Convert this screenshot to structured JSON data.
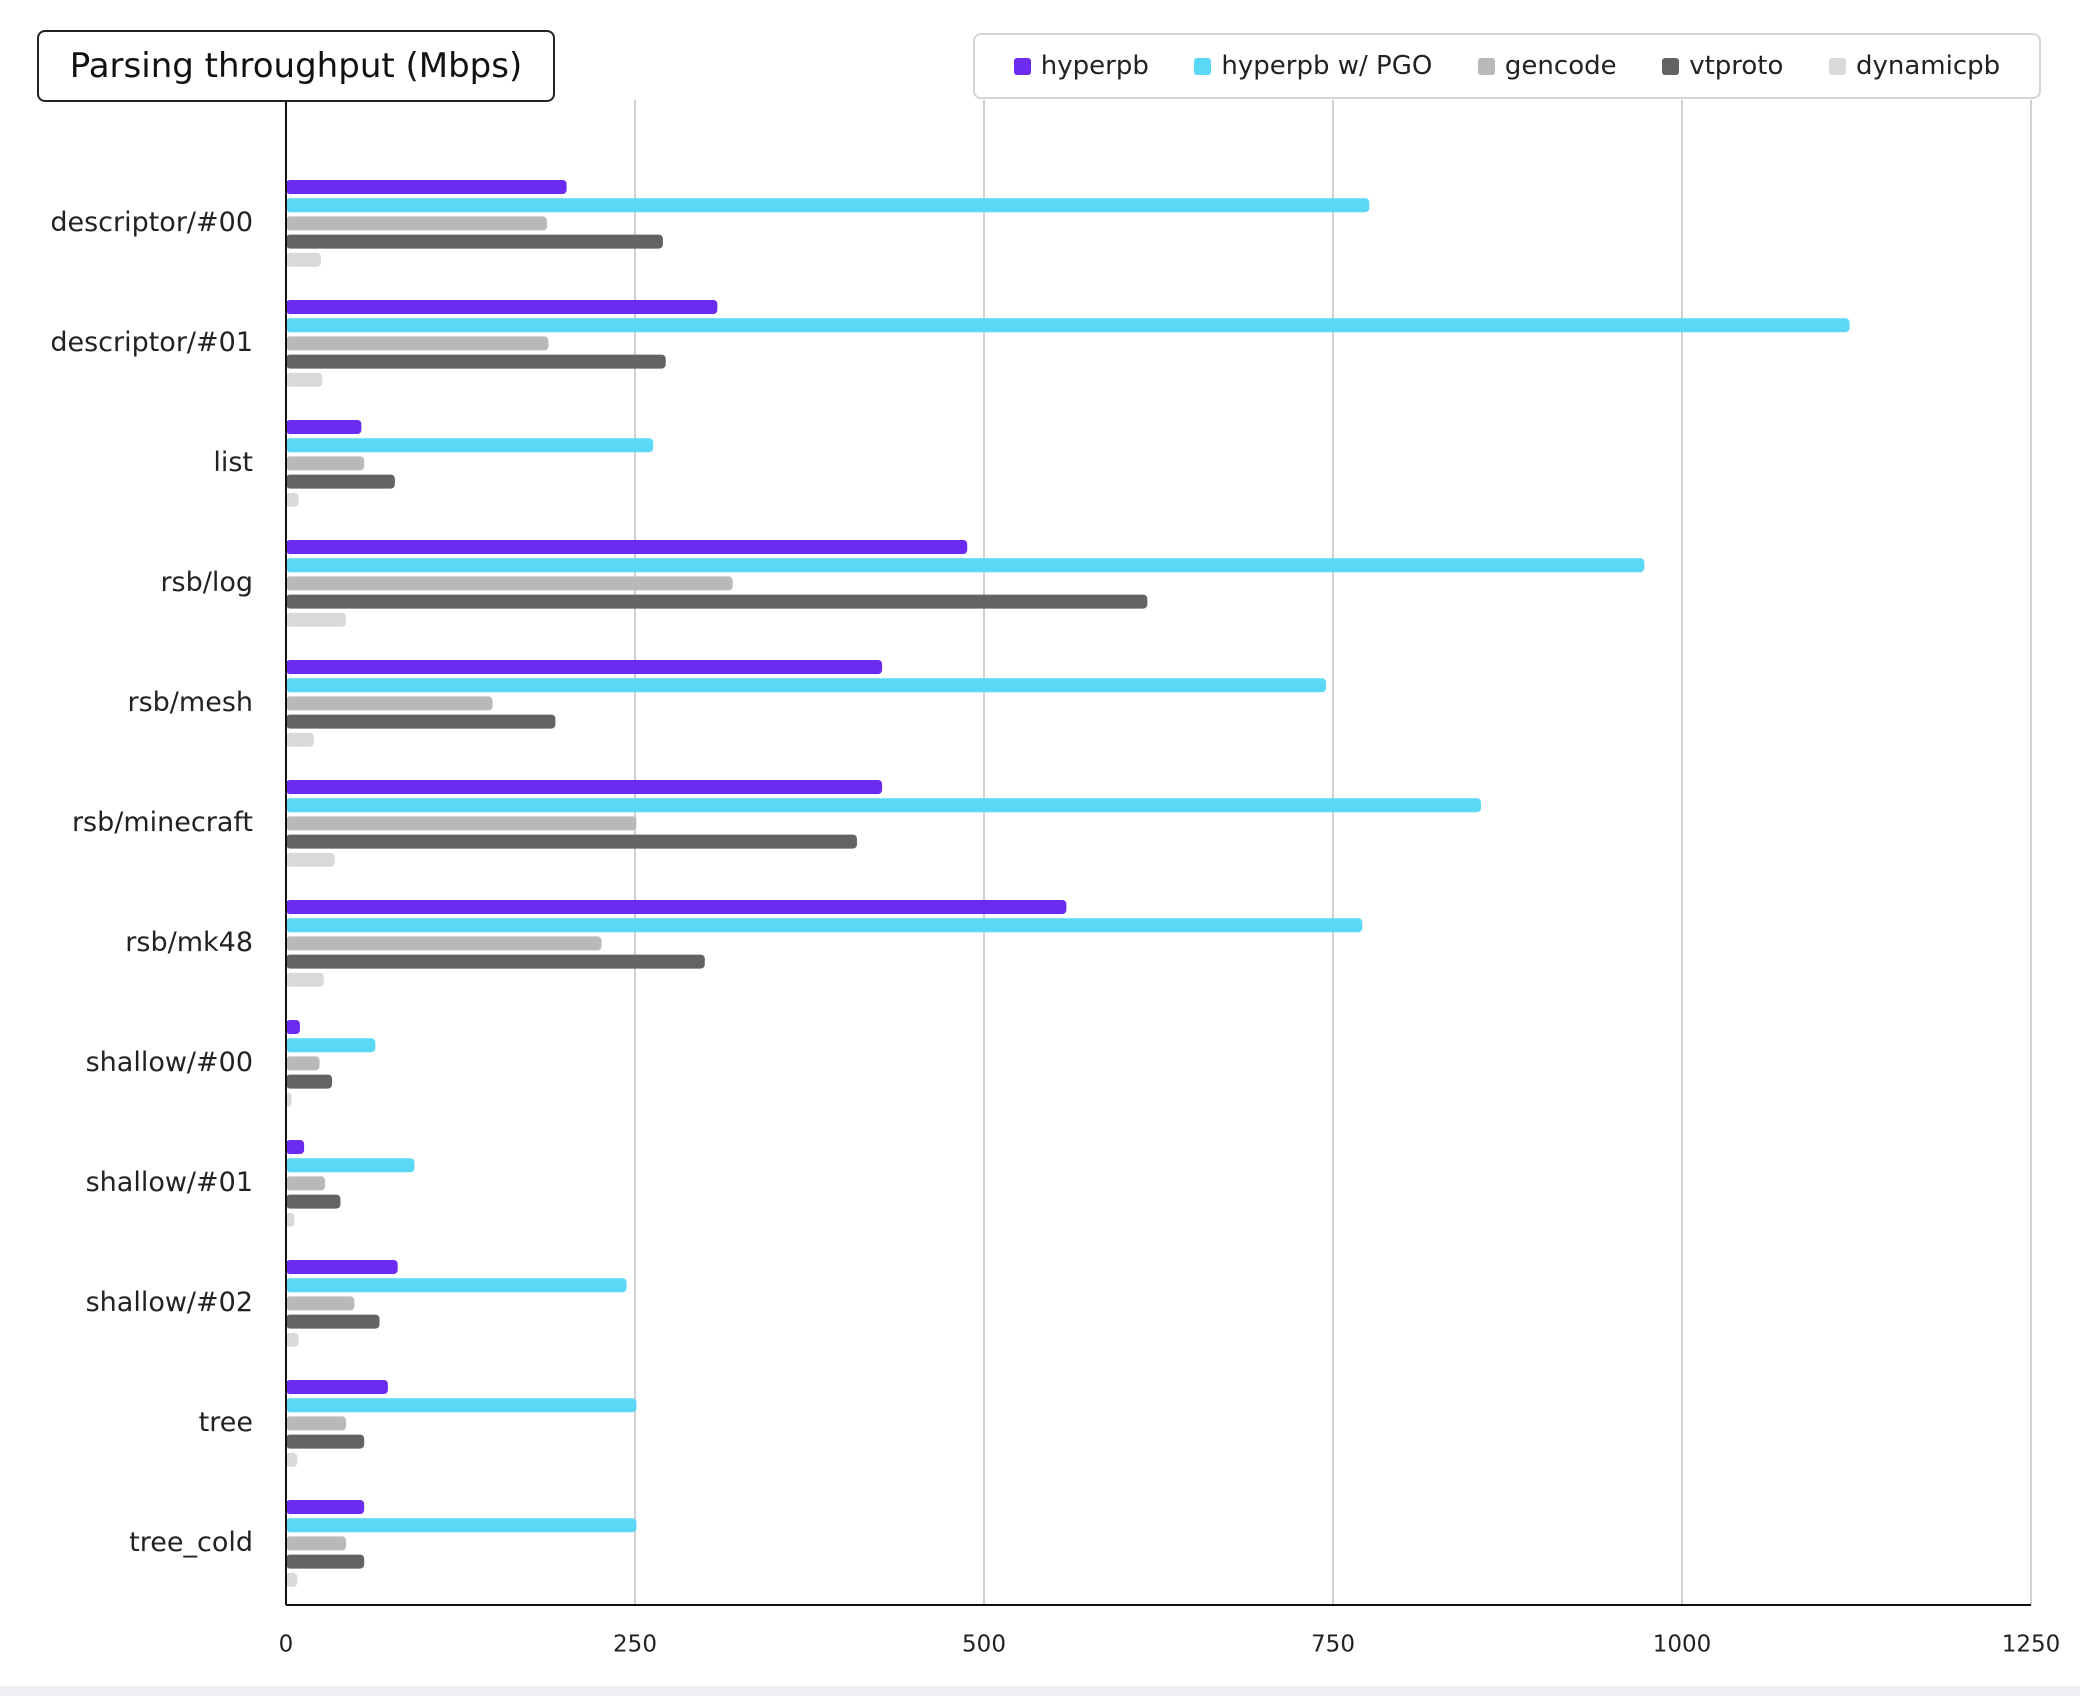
{
  "chart_data": {
    "type": "bar",
    "orientation": "horizontal",
    "title": "Parsing throughput (Mbps)",
    "xlabel": "",
    "ylabel": "",
    "xlim": [
      0,
      1250
    ],
    "x_ticks": [
      0,
      250,
      500,
      750,
      1000,
      1250
    ],
    "grid": true,
    "legend_position": "top-right",
    "categories": [
      "descriptor/#00",
      "descriptor/#01",
      "list",
      "rsb/log",
      "rsb/mesh",
      "rsb/minecraft",
      "rsb/mk48",
      "shallow/#00",
      "shallow/#01",
      "shallow/#02",
      "tree",
      "tree_cold"
    ],
    "series": [
      {
        "name": "hyperpb",
        "color": "#6b2bf0",
        "values": [
          201,
          309,
          54,
          488,
          427,
          427,
          559,
          10,
          13,
          80,
          73,
          56
        ]
      },
      {
        "name": "hyperpb w/ PGO",
        "color": "#5ad8f5",
        "values": [
          776,
          1120,
          263,
          973,
          745,
          856,
          771,
          64,
          92,
          244,
          251,
          251
        ]
      },
      {
        "name": "gencode",
        "color": "#b9b9b9",
        "values": [
          187,
          188,
          56,
          320,
          148,
          251,
          226,
          24,
          28,
          49,
          43,
          43
        ]
      },
      {
        "name": "vtproto",
        "color": "#636363",
        "values": [
          270,
          272,
          78,
          617,
          193,
          409,
          300,
          33,
          39,
          67,
          56,
          56
        ]
      },
      {
        "name": "dynamicpb",
        "color": "#d9d9d9",
        "values": [
          25,
          26,
          9,
          43,
          20,
          35,
          27,
          4,
          6,
          9,
          8,
          8
        ]
      }
    ]
  }
}
